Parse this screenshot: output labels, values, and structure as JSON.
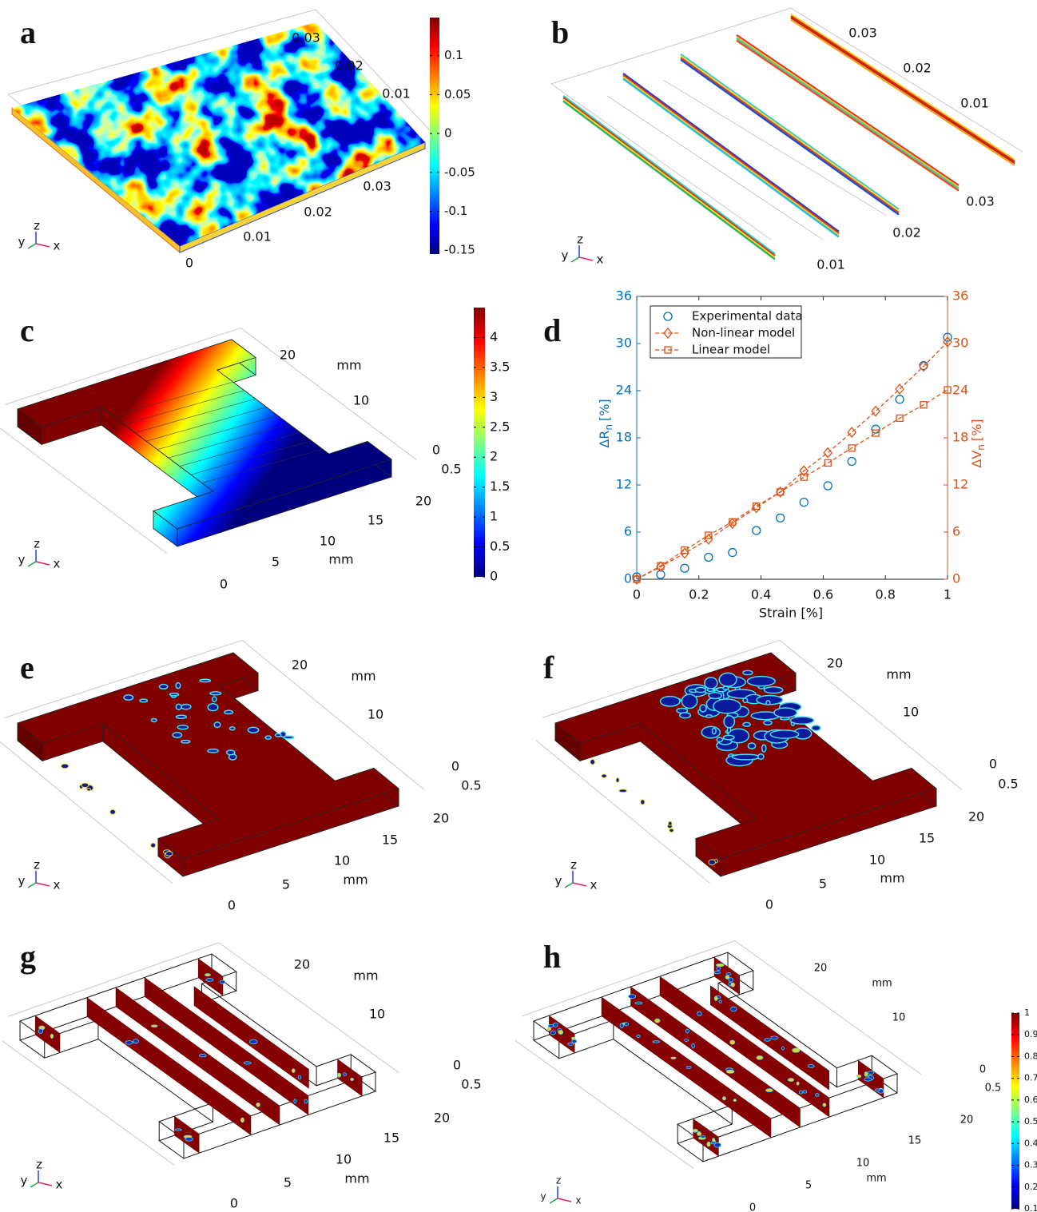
{
  "panels": [
    {
      "label": "a",
      "tick_labels": [
        "0.03",
        "0.02",
        "0.01",
        "0.03",
        "0.02",
        "0.01",
        "0"
      ],
      "triad": [
        "y",
        "z",
        "x"
      ]
    },
    {
      "label": "b",
      "tick_labels": [
        "0.03",
        "0.02",
        "0.01",
        "0.03",
        "0.02",
        "0.01"
      ],
      "triad": [
        "y",
        "z",
        "x"
      ]
    },
    {
      "label": "c",
      "tick_labels": [
        "20",
        "mm",
        "10",
        "0",
        "0.5",
        "20",
        "15",
        "10",
        "mm",
        "5",
        "0"
      ],
      "triad": [
        "y",
        "z",
        "x"
      ]
    },
    {
      "label": "d"
    },
    {
      "label": "e",
      "tick_labels": [
        "20",
        "mm",
        "10",
        "0",
        "0.5",
        "20",
        "15",
        "10",
        "mm",
        "5",
        "0"
      ],
      "triad": [
        "y",
        "z",
        "x"
      ]
    },
    {
      "label": "f",
      "tick_labels": [
        "20",
        "mm",
        "10",
        "0",
        "0.5",
        "20",
        "15",
        "10",
        "mm",
        "5",
        "0"
      ],
      "triad": [
        "y",
        "z",
        "x"
      ]
    },
    {
      "label": "g",
      "tick_labels": [
        "20",
        "mm",
        "10",
        "0",
        "0.5",
        "20",
        "15",
        "10",
        "mm",
        "5",
        "0"
      ],
      "triad": [
        "y",
        "z",
        "x"
      ]
    },
    {
      "label": "h",
      "tick_labels": [
        "20",
        "mm",
        "10",
        "0",
        "0.5",
        "20",
        "15",
        "10",
        "mm",
        "5",
        "0"
      ],
      "triad": [
        "y",
        "z",
        "x"
      ]
    }
  ],
  "chart_data": [
    {
      "type": "colorbar",
      "colormap": "jet",
      "ylim": [
        -0.155,
        0.149
      ],
      "yticks": [
        -0.15,
        -0.1,
        -0.05,
        0,
        0.05,
        0.1
      ]
    },
    {
      "type": "colorbar",
      "colormap": "jet",
      "ylim": [
        0,
        4.5
      ],
      "yticks": [
        0,
        0.5,
        1,
        1.5,
        2,
        2.5,
        3,
        3.5,
        4
      ]
    },
    {
      "type": "line",
      "xlabel": "Strain [%]",
      "ylabel": [
        "ΔR",
        "n",
        "[%]"
      ],
      "y2label": [
        "ΔV",
        "n",
        "[%]"
      ],
      "x": [
        0,
        0.077,
        0.154,
        0.231,
        0.308,
        0.385,
        0.462,
        0.538,
        0.615,
        0.692,
        0.769,
        0.846,
        0.923,
        1
      ],
      "xlim": [
        0,
        1
      ],
      "xticks": [
        0,
        0.2,
        0.4,
        0.6,
        0.8,
        1
      ],
      "ylim": [
        0,
        36
      ],
      "yticks": [
        0,
        6,
        12,
        18,
        24,
        30,
        36
      ],
      "y2lim": [
        0,
        36
      ],
      "y2ticks": [
        0,
        6,
        12,
        18,
        24,
        30,
        36
      ],
      "ycolor": "#0072bd",
      "y2color": "#d95319",
      "legend": "upper left",
      "series": [
        {
          "name": "Experimental data",
          "color": "#0072bd",
          "marker": "circle",
          "linestyle": "none",
          "values": [
            0.3,
            0.6,
            1.4,
            2.8,
            3.4,
            6.2,
            7.8,
            9.8,
            11.9,
            15,
            19.1,
            22.9,
            27.2,
            30.8
          ]
        },
        {
          "name": "Non-linear model",
          "color": "#d95319",
          "marker": "diamond",
          "linestyle": "dashed",
          "axis": "y2",
          "values": [
            0,
            1.6,
            3.3,
            5.1,
            7.1,
            9.1,
            11.1,
            13.8,
            16.1,
            18.7,
            21.4,
            24.2,
            27.1,
            30.2
          ]
        },
        {
          "name": "Linear model",
          "color": "#d95319",
          "marker": "square",
          "linestyle": "dashed",
          "axis": "y2",
          "values": [
            0,
            1.7,
            3.7,
            5.6,
            7.3,
            9.3,
            11.1,
            13,
            14.8,
            16.7,
            18.6,
            20.5,
            22.2,
            24.1
          ]
        }
      ]
    },
    {
      "type": "colorbar",
      "colormap": "jet",
      "ylim": [
        0.1,
        1
      ],
      "yticks": [
        0.1,
        0.2,
        0.3,
        0.4,
        0.5,
        0.6,
        0.7,
        0.8,
        0.9,
        1
      ]
    }
  ]
}
